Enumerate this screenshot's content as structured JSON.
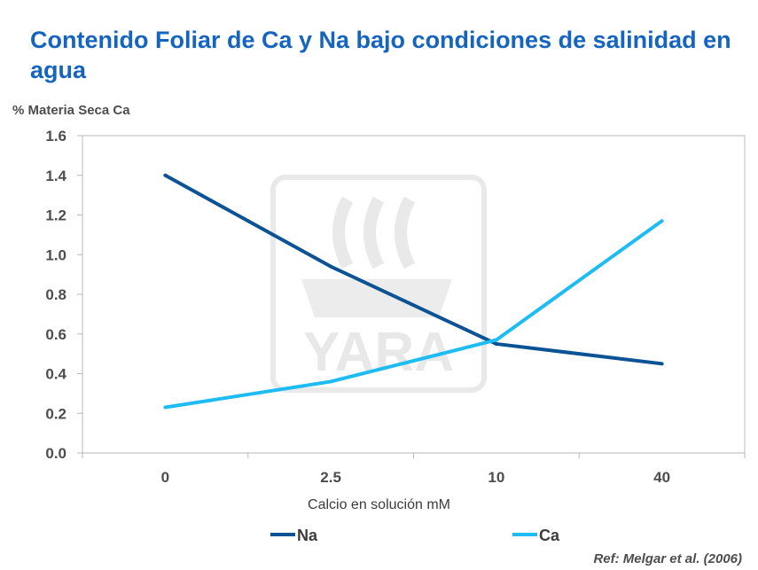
{
  "title": "Contenido Foliar de Ca y Na bajo condiciones de salinidad en agua",
  "watermark": "YARA",
  "reference": "Ref: Melgar et al. (2006)",
  "chart_data": {
    "type": "line",
    "title": "Contenido Foliar de Ca y Na bajo condiciones de salinidad en agua",
    "ylabel": "% Materia Seca Ca",
    "xlabel": "Calcio en solución mM",
    "categories": [
      "0",
      "2.5",
      "10",
      "40"
    ],
    "ylim": [
      0,
      1.6
    ],
    "yticks": [
      "0.0",
      "0.2",
      "0.4",
      "0.6",
      "0.8",
      "1.0",
      "1.2",
      "1.4",
      "1.6"
    ],
    "grid": false,
    "legend": "bottom",
    "series": [
      {
        "name": "Na",
        "color": "#0b5394",
        "values": [
          1.4,
          0.94,
          0.55,
          0.45
        ]
      },
      {
        "name": "Ca",
        "color": "#1ebcf2",
        "values": [
          0.23,
          0.36,
          0.57,
          1.17
        ]
      }
    ]
  }
}
